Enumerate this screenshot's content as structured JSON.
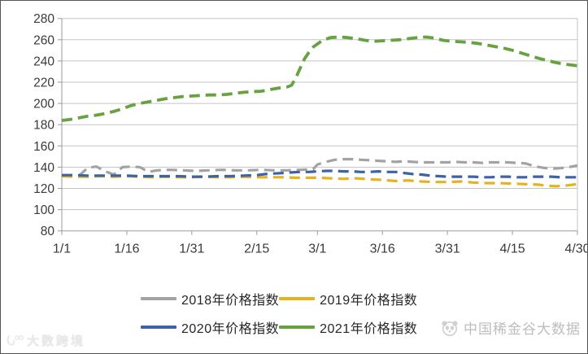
{
  "chart_data": {
    "type": "line",
    "title": "",
    "xlabel": "",
    "ylabel": "",
    "grid": true,
    "legend_position": "bottom",
    "x_axis": {
      "unit": "date (month/day)",
      "tick_labels": [
        "1/1",
        "1/16",
        "1/31",
        "2/15",
        "3/1",
        "3/16",
        "3/31",
        "4/15",
        "4/30"
      ],
      "tick_days": [
        0,
        15,
        30,
        45,
        59,
        74,
        89,
        104,
        119
      ],
      "range_days": [
        0,
        119
      ]
    },
    "y_axis": {
      "min": 80,
      "max": 280,
      "step": 20,
      "tick_labels": [
        "80",
        "100",
        "120",
        "140",
        "160",
        "180",
        "200",
        "220",
        "240",
        "260",
        "280"
      ]
    },
    "line_style": "dashed",
    "series": [
      {
        "name": "2018年价格指数",
        "color": "#a3a3a3",
        "points": [
          [
            0,
            131.5
          ],
          [
            2,
            131.5
          ],
          [
            4,
            132
          ],
          [
            6,
            139.5
          ],
          [
            8,
            140.5
          ],
          [
            10,
            136
          ],
          [
            12,
            133
          ],
          [
            14,
            140
          ],
          [
            16,
            140.5
          ],
          [
            18,
            140
          ],
          [
            20,
            135.5
          ],
          [
            22,
            137
          ],
          [
            25,
            137.5
          ],
          [
            28,
            137
          ],
          [
            31,
            136.5
          ],
          [
            34,
            137
          ],
          [
            37,
            137.5
          ],
          [
            40,
            137
          ],
          [
            43,
            137
          ],
          [
            46,
            137.5
          ],
          [
            49,
            137
          ],
          [
            52,
            137
          ],
          [
            55,
            137.5
          ],
          [
            58,
            138
          ],
          [
            59,
            142.5
          ],
          [
            61,
            145
          ],
          [
            63,
            147
          ],
          [
            65,
            147.5
          ],
          [
            67,
            147.5
          ],
          [
            69,
            147
          ],
          [
            71,
            146.5
          ],
          [
            73,
            146
          ],
          [
            75,
            145.5
          ],
          [
            77,
            145
          ],
          [
            79,
            145.5
          ],
          [
            81,
            145
          ],
          [
            83,
            144.5
          ],
          [
            85,
            144.5
          ],
          [
            87,
            144.5
          ],
          [
            89,
            144.5
          ],
          [
            91,
            145
          ],
          [
            93,
            144.5
          ],
          [
            95,
            144.5
          ],
          [
            97,
            144
          ],
          [
            99,
            144.5
          ],
          [
            101,
            144.5
          ],
          [
            103,
            144.5
          ],
          [
            105,
            144
          ],
          [
            107,
            143.5
          ],
          [
            109,
            141
          ],
          [
            111,
            139.5
          ],
          [
            113,
            138.5
          ],
          [
            115,
            139
          ],
          [
            117,
            140
          ],
          [
            119,
            141.5
          ]
        ]
      },
      {
        "name": "2019年价格指数",
        "color": "#e7b120",
        "points": [
          [
            0,
            131.5
          ],
          [
            3,
            131
          ],
          [
            6,
            131
          ],
          [
            9,
            131.5
          ],
          [
            12,
            131
          ],
          [
            15,
            131.5
          ],
          [
            18,
            131
          ],
          [
            21,
            130.5
          ],
          [
            24,
            131
          ],
          [
            27,
            130.5
          ],
          [
            30,
            130.5
          ],
          [
            33,
            131
          ],
          [
            36,
            130.5
          ],
          [
            39,
            130.5
          ],
          [
            42,
            131
          ],
          [
            45,
            130.5
          ],
          [
            48,
            130.5
          ],
          [
            51,
            130.5
          ],
          [
            54,
            130
          ],
          [
            57,
            130
          ],
          [
            59,
            130
          ],
          [
            62,
            129.5
          ],
          [
            65,
            129
          ],
          [
            68,
            129.5
          ],
          [
            71,
            128.5
          ],
          [
            74,
            128
          ],
          [
            77,
            127
          ],
          [
            80,
            127.5
          ],
          [
            83,
            126.5
          ],
          [
            86,
            126
          ],
          [
            89,
            126
          ],
          [
            92,
            126.5
          ],
          [
            95,
            125.5
          ],
          [
            98,
            125
          ],
          [
            101,
            125
          ],
          [
            104,
            124.5
          ],
          [
            107,
            124
          ],
          [
            110,
            123.5
          ],
          [
            112,
            122.5
          ],
          [
            114,
            122
          ],
          [
            116,
            122.5
          ],
          [
            119,
            124
          ]
        ]
      },
      {
        "name": "2020年价格指数",
        "color": "#3c63a6",
        "points": [
          [
            0,
            132.5
          ],
          [
            3,
            132.5
          ],
          [
            6,
            132
          ],
          [
            9,
            132
          ],
          [
            12,
            132
          ],
          [
            15,
            132
          ],
          [
            18,
            131.5
          ],
          [
            21,
            131.5
          ],
          [
            24,
            131.5
          ],
          [
            27,
            131.5
          ],
          [
            30,
            131
          ],
          [
            33,
            131
          ],
          [
            36,
            131.5
          ],
          [
            39,
            131.5
          ],
          [
            42,
            132
          ],
          [
            45,
            132.5
          ],
          [
            47,
            133.5
          ],
          [
            49,
            134
          ],
          [
            51,
            134.5
          ],
          [
            53,
            135
          ],
          [
            55,
            135.5
          ],
          [
            57,
            135.5
          ],
          [
            59,
            136
          ],
          [
            61,
            136.5
          ],
          [
            63,
            136.5
          ],
          [
            65,
            136
          ],
          [
            67,
            136
          ],
          [
            69,
            135.5
          ],
          [
            71,
            135.5
          ],
          [
            73,
            136
          ],
          [
            75,
            135.5
          ],
          [
            77,
            135.5
          ],
          [
            79,
            134.5
          ],
          [
            81,
            133.5
          ],
          [
            83,
            133
          ],
          [
            85,
            132
          ],
          [
            87,
            131.5
          ],
          [
            89,
            131
          ],
          [
            91,
            131
          ],
          [
            93,
            131
          ],
          [
            95,
            131
          ],
          [
            97,
            130.5
          ],
          [
            99,
            130.5
          ],
          [
            101,
            131
          ],
          [
            103,
            131
          ],
          [
            105,
            130.5
          ],
          [
            107,
            130.5
          ],
          [
            109,
            131
          ],
          [
            111,
            131
          ],
          [
            113,
            131
          ],
          [
            115,
            130.5
          ],
          [
            117,
            130.5
          ],
          [
            119,
            130.5
          ]
        ]
      },
      {
        "name": "2021年价格指数",
        "color": "#66a23f",
        "points": [
          [
            0,
            184
          ],
          [
            2,
            185
          ],
          [
            4,
            186.5
          ],
          [
            6,
            188
          ],
          [
            8,
            189
          ],
          [
            10,
            190.5
          ],
          [
            12,
            192.5
          ],
          [
            14,
            195
          ],
          [
            16,
            198
          ],
          [
            18,
            200
          ],
          [
            20,
            201.5
          ],
          [
            22,
            203
          ],
          [
            24,
            204.5
          ],
          [
            26,
            205.5
          ],
          [
            28,
            206.5
          ],
          [
            30,
            207
          ],
          [
            32,
            207.5
          ],
          [
            34,
            208
          ],
          [
            36,
            208
          ],
          [
            38,
            208.5
          ],
          [
            40,
            209.5
          ],
          [
            42,
            210.5
          ],
          [
            44,
            211
          ],
          [
            46,
            211.5
          ],
          [
            48,
            213
          ],
          [
            50,
            214.5
          ],
          [
            52,
            215.5
          ],
          [
            53,
            217
          ],
          [
            54,
            224
          ],
          [
            55,
            233
          ],
          [
            56,
            242
          ],
          [
            57,
            248
          ],
          [
            58,
            253
          ],
          [
            60,
            259
          ],
          [
            62,
            262
          ],
          [
            64,
            262.5
          ],
          [
            66,
            262
          ],
          [
            68,
            261
          ],
          [
            70,
            259.5
          ],
          [
            72,
            258.5
          ],
          [
            74,
            259
          ],
          [
            76,
            259.5
          ],
          [
            78,
            260
          ],
          [
            80,
            261
          ],
          [
            82,
            262
          ],
          [
            84,
            262.5
          ],
          [
            86,
            261.5
          ],
          [
            88,
            259.5
          ],
          [
            90,
            258.5
          ],
          [
            92,
            258
          ],
          [
            94,
            257.5
          ],
          [
            96,
            256.5
          ],
          [
            98,
            255
          ],
          [
            100,
            253.5
          ],
          [
            102,
            252
          ],
          [
            104,
            250
          ],
          [
            106,
            247.5
          ],
          [
            108,
            245
          ],
          [
            110,
            242.5
          ],
          [
            112,
            240.5
          ],
          [
            114,
            238.5
          ],
          [
            116,
            237
          ],
          [
            118,
            236
          ],
          [
            119,
            235.5
          ]
        ]
      }
    ]
  },
  "watermarks": {
    "right_text": "中国稀金谷大数据",
    "left_text": "大数跨境"
  }
}
